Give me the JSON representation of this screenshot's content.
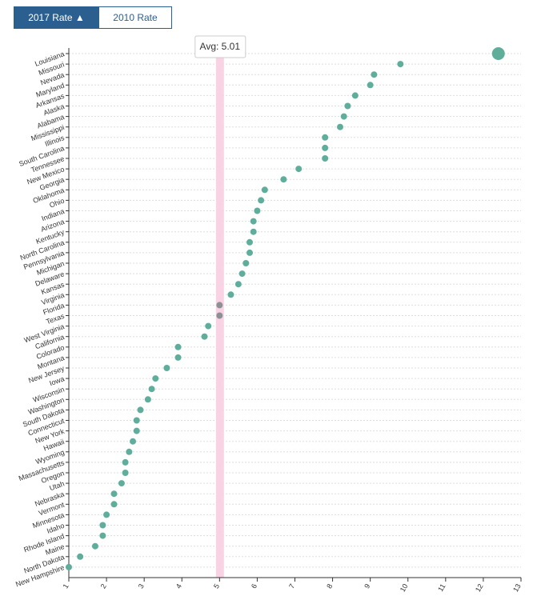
{
  "buttons": [
    "2017 Rate",
    "2010 Rate"
  ],
  "chart_data": {
    "type": "dot",
    "categories": [
      "Louisiana",
      "Missouri",
      "Nevada",
      "Maryland",
      "Arkansas",
      "Alaska",
      "Alabama",
      "Mississippi",
      "Illinois",
      "South Carolina",
      "Tennessee",
      "New Mexico",
      "Georgia",
      "Oklahoma",
      "Ohio",
      "Indiana",
      "Arizona",
      "Kentucky",
      "North Carolina",
      "Pennsylvania",
      "Michigan",
      "Delaware",
      "Kansas",
      "Virginia",
      "Florida",
      "Texas",
      "West Virginia",
      "California",
      "Colorado",
      "Montana",
      "New Jersey",
      "Iowa",
      "Wisconsin",
      "Washington",
      "South Dakota",
      "Connecticut",
      "New York",
      "Hawaii",
      "Wyoming",
      "Massachusetts",
      "Oregon",
      "Utah",
      "Nebraska",
      "Vermont",
      "Minnesota",
      "Idaho",
      "Rhode Island",
      "Maine",
      "North Dakota",
      "New Hampshire"
    ],
    "values": [
      12.4,
      9.8,
      9.1,
      9.0,
      8.6,
      8.4,
      8.3,
      8.2,
      7.8,
      7.8,
      7.8,
      7.1,
      6.7,
      6.2,
      6.1,
      6.0,
      5.9,
      5.9,
      5.8,
      5.8,
      5.7,
      5.6,
      5.5,
      5.3,
      5.0,
      5.0,
      4.7,
      4.6,
      3.9,
      3.9,
      3.6,
      3.3,
      3.2,
      3.1,
      2.9,
      2.8,
      2.8,
      2.7,
      2.6,
      2.5,
      2.5,
      2.4,
      2.2,
      2.2,
      2.0,
      1.9,
      1.9,
      1.7,
      1.3,
      1.0
    ],
    "color": "#5fae9b",
    "highlight_color": "#8c9196",
    "highlighted": [
      "Florida",
      "Texas"
    ],
    "selected": "Louisiana",
    "avg": {
      "value": 5.01,
      "label": "Avg: 5.01"
    },
    "xlim": [
      1,
      13
    ],
    "xticks": [
      1,
      2,
      3,
      4,
      5,
      6,
      7,
      8,
      9,
      10,
      11,
      12,
      13
    ],
    "grid": true
  }
}
